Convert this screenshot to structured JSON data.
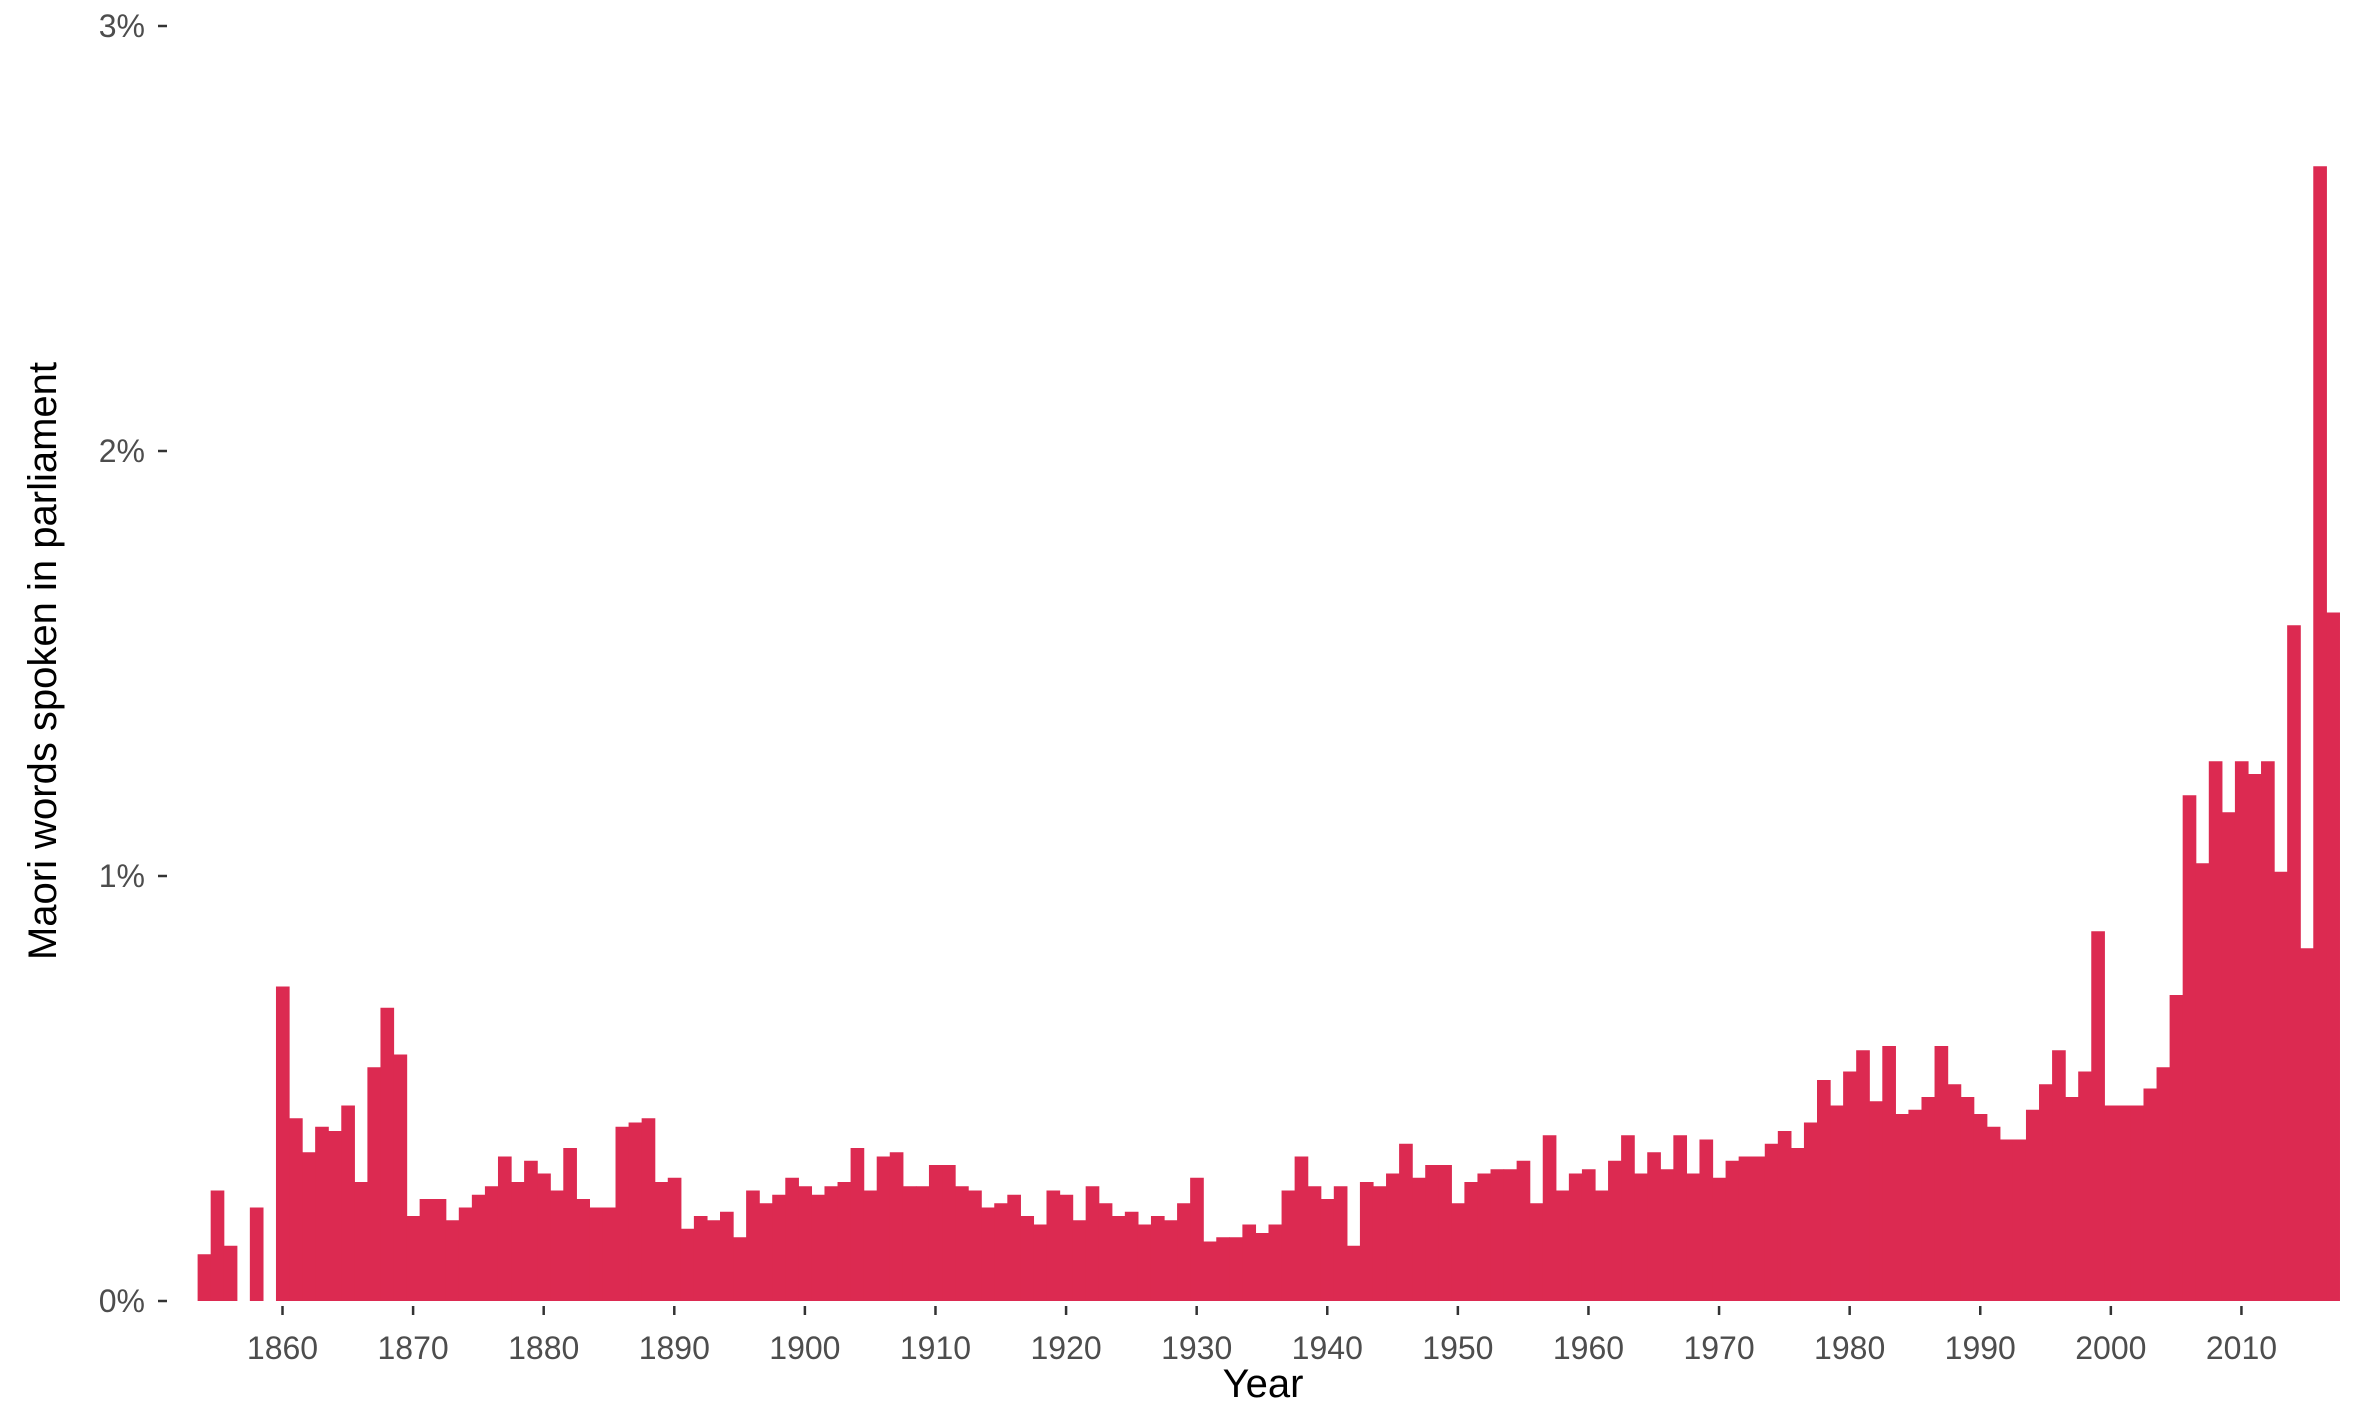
{
  "chart_data": {
    "type": "bar",
    "title": "",
    "xlabel": "Year",
    "ylabel": "Maori words spoken in parliament",
    "bar_color": "#dc2a51",
    "ylim": [
      0,
      3
    ],
    "yticks": [
      0,
      1,
      2,
      3
    ],
    "ytick_labels": [
      "0%",
      "1%",
      "2%",
      "3%"
    ],
    "xlim": [
      1853.3,
      2017.7
    ],
    "xticks": [
      1860,
      1870,
      1880,
      1890,
      1900,
      1910,
      1920,
      1930,
      1940,
      1950,
      1960,
      1970,
      1980,
      1990,
      2000,
      2010
    ],
    "xtick_labels": [
      "1860",
      "1870",
      "1880",
      "1890",
      "1900",
      "1910",
      "1920",
      "1930",
      "1940",
      "1950",
      "1960",
      "1970",
      "1980",
      "1990",
      "2000",
      "2010"
    ],
    "x": [
      1854,
      1855,
      1856,
      1858,
      1860,
      1861,
      1862,
      1863,
      1864,
      1865,
      1866,
      1867,
      1868,
      1869,
      1870,
      1871,
      1872,
      1873,
      1874,
      1875,
      1876,
      1877,
      1878,
      1879,
      1880,
      1881,
      1882,
      1883,
      1884,
      1885,
      1886,
      1887,
      1888,
      1889,
      1890,
      1891,
      1892,
      1893,
      1894,
      1895,
      1896,
      1897,
      1898,
      1899,
      1900,
      1901,
      1902,
      1903,
      1904,
      1905,
      1906,
      1907,
      1908,
      1909,
      1910,
      1911,
      1912,
      1913,
      1914,
      1915,
      1916,
      1917,
      1918,
      1919,
      1920,
      1921,
      1922,
      1923,
      1924,
      1925,
      1926,
      1927,
      1928,
      1929,
      1930,
      1931,
      1932,
      1933,
      1934,
      1935,
      1936,
      1937,
      1938,
      1939,
      1940,
      1941,
      1942,
      1943,
      1944,
      1945,
      1946,
      1947,
      1948,
      1949,
      1950,
      1951,
      1952,
      1953,
      1954,
      1955,
      1956,
      1957,
      1958,
      1959,
      1960,
      1961,
      1962,
      1963,
      1964,
      1965,
      1966,
      1967,
      1968,
      1969,
      1970,
      1971,
      1972,
      1973,
      1974,
      1975,
      1976,
      1977,
      1978,
      1979,
      1980,
      1981,
      1982,
      1983,
      1984,
      1985,
      1986,
      1987,
      1988,
      1989,
      1990,
      1991,
      1992,
      1993,
      1994,
      1995,
      1996,
      1997,
      1998,
      1999,
      2000,
      2001,
      2002,
      2003,
      2004,
      2005,
      2006,
      2007,
      2008,
      2009,
      2010,
      2011,
      2012,
      2013,
      2014,
      2015,
      2016,
      2017
    ],
    "values": [
      0.11,
      0.26,
      0.13,
      0.22,
      0.74,
      0.43,
      0.35,
      0.41,
      0.4,
      0.46,
      0.28,
      0.55,
      0.69,
      0.58,
      0.2,
      0.24,
      0.24,
      0.19,
      0.22,
      0.25,
      0.27,
      0.34,
      0.28,
      0.33,
      0.3,
      0.26,
      0.36,
      0.24,
      0.22,
      0.22,
      0.41,
      0.42,
      0.43,
      0.28,
      0.29,
      0.17,
      0.2,
      0.19,
      0.21,
      0.15,
      0.26,
      0.23,
      0.25,
      0.29,
      0.27,
      0.25,
      0.27,
      0.28,
      0.36,
      0.26,
      0.34,
      0.35,
      0.27,
      0.27,
      0.32,
      0.32,
      0.27,
      0.26,
      0.22,
      0.23,
      0.25,
      0.2,
      0.18,
      0.26,
      0.25,
      0.19,
      0.27,
      0.23,
      0.2,
      0.21,
      0.18,
      0.2,
      0.19,
      0.23,
      0.29,
      0.14,
      0.15,
      0.15,
      0.18,
      0.16,
      0.18,
      0.26,
      0.34,
      0.27,
      0.24,
      0.27,
      0.13,
      0.28,
      0.27,
      0.3,
      0.37,
      0.29,
      0.32,
      0.32,
      0.23,
      0.28,
      0.3,
      0.31,
      0.31,
      0.33,
      0.23,
      0.39,
      0.26,
      0.3,
      0.31,
      0.26,
      0.33,
      0.39,
      0.3,
      0.35,
      0.31,
      0.39,
      0.3,
      0.38,
      0.29,
      0.33,
      0.34,
      0.34,
      0.37,
      0.4,
      0.36,
      0.42,
      0.52,
      0.46,
      0.54,
      0.59,
      0.47,
      0.6,
      0.44,
      0.45,
      0.48,
      0.6,
      0.51,
      0.48,
      0.44,
      0.41,
      0.38,
      0.38,
      0.45,
      0.51,
      0.59,
      0.48,
      0.54,
      0.87,
      0.46,
      0.46,
      0.46,
      0.5,
      0.55,
      0.72,
      1.19,
      1.03,
      1.27,
      1.15,
      1.27,
      1.24,
      1.27,
      1.01,
      1.59,
      0.83,
      2.67,
      1.62
    ]
  }
}
